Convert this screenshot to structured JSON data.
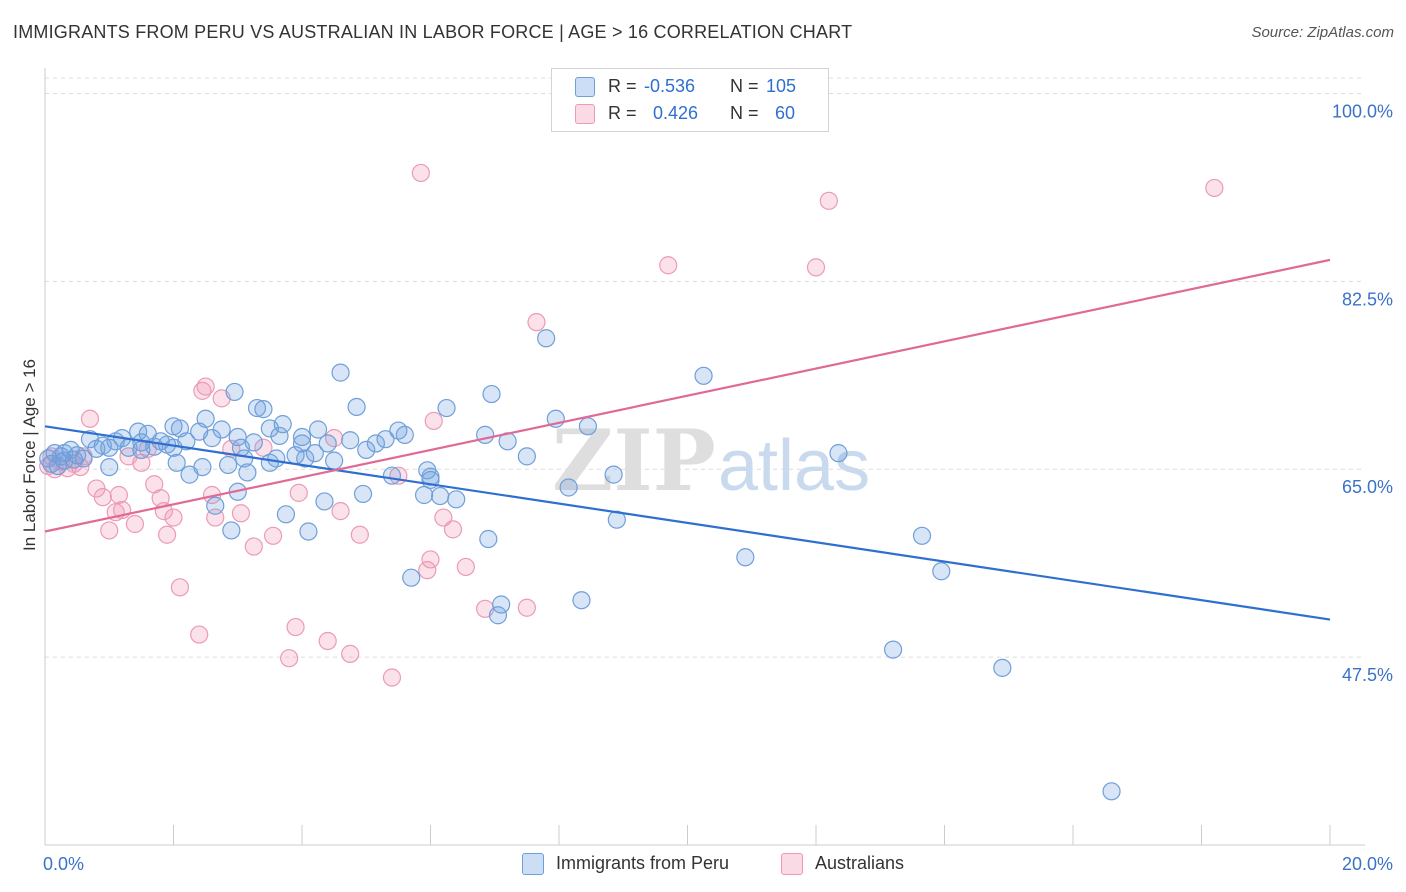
{
  "title": "IMMIGRANTS FROM PERU VS AUSTRALIAN IN LABOR FORCE | AGE > 16 CORRELATION CHART",
  "source": "Source: ZipAtlas.com",
  "watermark": {
    "zip": "ZIP",
    "atlas": "atlas"
  },
  "colors": {
    "peru_fill": "rgba(110,160,225,0.28)",
    "peru_stroke": "#6f9fd8",
    "peru_line": "#2f6fd0",
    "aus_fill": "rgba(240,150,180,0.28)",
    "aus_stroke": "#ec9ab6",
    "aus_line": "#e06a96",
    "axis_label": "#3a72c8",
    "grid": "#dcdcdc"
  },
  "stats_legend": {
    "r_label": "R =",
    "n_label": "N =",
    "peru_r": "-0.536",
    "peru_n": "105",
    "aus_r": "0.426",
    "aus_n": "60"
  },
  "chart_data": {
    "type": "scatter",
    "title": "IMMIGRANTS FROM PERU VS AUSTRALIAN IN LABOR FORCE | AGE > 16 CORRELATION CHART",
    "xlabel": "",
    "ylabel": "In Labor Force | Age > 16",
    "xlim": [
      0,
      20
    ],
    "ylim": [
      30,
      102
    ],
    "x_tick_labels": {
      "left": "0.0%",
      "right": "20.0%"
    },
    "y_ticks": [
      47.5,
      65.0,
      82.5,
      100.0
    ],
    "y_tick_labels": [
      "47.5%",
      "65.0%",
      "82.5%",
      "100.0%"
    ],
    "grid": true,
    "legend_position": "bottom-center",
    "series": [
      {
        "name": "Immigrants from Peru",
        "r": -0.536,
        "n": 105,
        "trend": {
          "x": [
            0,
            20
          ],
          "y": [
            69.0,
            51.0
          ]
        },
        "points": [
          [
            0.05,
            66.0
          ],
          [
            0.1,
            65.5
          ],
          [
            0.15,
            66.5
          ],
          [
            0.2,
            65.3
          ],
          [
            0.25,
            66.2
          ],
          [
            0.3,
            65.8
          ],
          [
            0.4,
            66.8
          ],
          [
            0.45,
            65.9
          ],
          [
            0.5,
            66.3
          ],
          [
            0.6,
            66.0
          ],
          [
            0.7,
            67.8
          ],
          [
            0.8,
            66.9
          ],
          [
            0.9,
            67.2
          ],
          [
            1.0,
            65.2
          ],
          [
            1.1,
            67.6
          ],
          [
            1.2,
            67.9
          ],
          [
            1.3,
            67.0
          ],
          [
            1.45,
            68.5
          ],
          [
            1.5,
            67.5
          ],
          [
            1.6,
            68.3
          ],
          [
            1.7,
            67.1
          ],
          [
            1.8,
            67.6
          ],
          [
            1.9,
            67.3
          ],
          [
            2.0,
            69.0
          ],
          [
            2.05,
            65.6
          ],
          [
            2.1,
            68.8
          ],
          [
            2.2,
            67.6
          ],
          [
            2.25,
            64.5
          ],
          [
            2.4,
            68.5
          ],
          [
            2.45,
            65.2
          ],
          [
            2.5,
            69.7
          ],
          [
            2.6,
            67.9
          ],
          [
            2.65,
            61.6
          ],
          [
            2.75,
            68.7
          ],
          [
            2.85,
            65.4
          ],
          [
            2.9,
            59.3
          ],
          [
            2.95,
            72.2
          ],
          [
            3.0,
            62.9
          ],
          [
            3.05,
            67.0
          ],
          [
            3.1,
            66.0
          ],
          [
            3.15,
            64.7
          ],
          [
            3.25,
            67.5
          ],
          [
            3.3,
            70.7
          ],
          [
            3.4,
            70.6
          ],
          [
            3.5,
            68.8
          ],
          [
            3.5,
            65.6
          ],
          [
            3.6,
            66.0
          ],
          [
            3.65,
            68.1
          ],
          [
            3.7,
            69.2
          ],
          [
            3.75,
            60.8
          ],
          [
            3.9,
            66.3
          ],
          [
            4.0,
            67.4
          ],
          [
            4.05,
            66.0
          ],
          [
            4.1,
            59.2
          ],
          [
            4.2,
            66.5
          ],
          [
            4.25,
            68.7
          ],
          [
            4.35,
            62.0
          ],
          [
            4.4,
            67.4
          ],
          [
            4.5,
            65.8
          ],
          [
            4.6,
            74.0
          ],
          [
            4.75,
            67.7
          ],
          [
            4.85,
            70.8
          ],
          [
            4.95,
            62.7
          ],
          [
            5.0,
            66.8
          ],
          [
            5.15,
            67.4
          ],
          [
            5.3,
            67.8
          ],
          [
            5.4,
            64.4
          ],
          [
            5.5,
            68.6
          ],
          [
            5.6,
            68.2
          ],
          [
            5.7,
            54.9
          ],
          [
            5.9,
            62.6
          ],
          [
            5.95,
            64.9
          ],
          [
            6.0,
            64.3
          ],
          [
            6.15,
            62.5
          ],
          [
            6.25,
            70.7
          ],
          [
            6.4,
            62.2
          ],
          [
            6.85,
            68.2
          ],
          [
            6.9,
            58.5
          ],
          [
            6.95,
            72.0
          ],
          [
            7.05,
            51.4
          ],
          [
            7.1,
            52.4
          ],
          [
            7.2,
            67.6
          ],
          [
            7.5,
            66.2
          ],
          [
            7.8,
            77.2
          ],
          [
            7.95,
            69.7
          ],
          [
            8.15,
            63.3
          ],
          [
            8.35,
            52.8
          ],
          [
            8.45,
            69.0
          ],
          [
            8.85,
            64.5
          ],
          [
            8.9,
            60.3
          ],
          [
            10.25,
            73.7
          ],
          [
            10.9,
            56.8
          ],
          [
            12.35,
            66.5
          ],
          [
            13.2,
            48.2
          ],
          [
            13.65,
            58.8
          ],
          [
            13.95,
            55.5
          ],
          [
            14.9,
            46.5
          ],
          [
            16.6,
            35.0
          ],
          [
            0.3,
            66.5
          ],
          [
            1.0,
            67.0
          ],
          [
            2.0,
            67.0
          ],
          [
            3.0,
            68.0
          ],
          [
            4.0,
            68.0
          ],
          [
            6.0,
            64.0
          ],
          [
            1.5,
            66.8
          ]
        ]
      },
      {
        "name": "Australians",
        "r": 0.426,
        "n": 60,
        "trend": {
          "x": [
            0,
            20
          ],
          "y": [
            59.2,
            84.5
          ]
        },
        "points": [
          [
            0.05,
            65.3
          ],
          [
            0.1,
            66.2
          ],
          [
            0.15,
            65.0
          ],
          [
            0.25,
            65.7
          ],
          [
            0.35,
            65.1
          ],
          [
            0.45,
            65.5
          ],
          [
            0.55,
            65.2
          ],
          [
            0.6,
            66.2
          ],
          [
            0.7,
            69.7
          ],
          [
            0.8,
            63.2
          ],
          [
            0.9,
            62.4
          ],
          [
            1.0,
            59.3
          ],
          [
            1.1,
            61.0
          ],
          [
            1.15,
            62.6
          ],
          [
            1.2,
            61.2
          ],
          [
            1.3,
            66.2
          ],
          [
            1.4,
            59.9
          ],
          [
            1.5,
            65.6
          ],
          [
            1.6,
            66.9
          ],
          [
            1.7,
            63.6
          ],
          [
            1.8,
            62.3
          ],
          [
            1.85,
            61.1
          ],
          [
            1.9,
            58.9
          ],
          [
            2.0,
            60.5
          ],
          [
            2.1,
            54.0
          ],
          [
            2.4,
            49.6
          ],
          [
            2.45,
            72.3
          ],
          [
            2.5,
            72.7
          ],
          [
            2.6,
            62.6
          ],
          [
            2.65,
            60.5
          ],
          [
            2.75,
            71.6
          ],
          [
            2.9,
            66.9
          ],
          [
            3.05,
            60.9
          ],
          [
            3.25,
            57.8
          ],
          [
            3.4,
            67.0
          ],
          [
            3.55,
            58.8
          ],
          [
            3.8,
            47.4
          ],
          [
            3.9,
            50.3
          ],
          [
            3.95,
            62.8
          ],
          [
            4.4,
            49.0
          ],
          [
            4.5,
            67.9
          ],
          [
            4.6,
            61.1
          ],
          [
            4.75,
            47.8
          ],
          [
            4.9,
            58.9
          ],
          [
            5.4,
            45.6
          ],
          [
            5.5,
            64.4
          ],
          [
            5.95,
            55.6
          ],
          [
            6.0,
            56.6
          ],
          [
            6.05,
            69.5
          ],
          [
            6.2,
            60.5
          ],
          [
            6.35,
            59.4
          ],
          [
            6.55,
            55.9
          ],
          [
            6.85,
            52.0
          ],
          [
            7.5,
            52.1
          ],
          [
            7.65,
            78.7
          ],
          [
            9.7,
            84.0
          ],
          [
            12.0,
            83.8
          ],
          [
            12.2,
            90.0
          ],
          [
            18.2,
            91.2
          ],
          [
            5.85,
            92.6
          ]
        ]
      }
    ]
  }
}
